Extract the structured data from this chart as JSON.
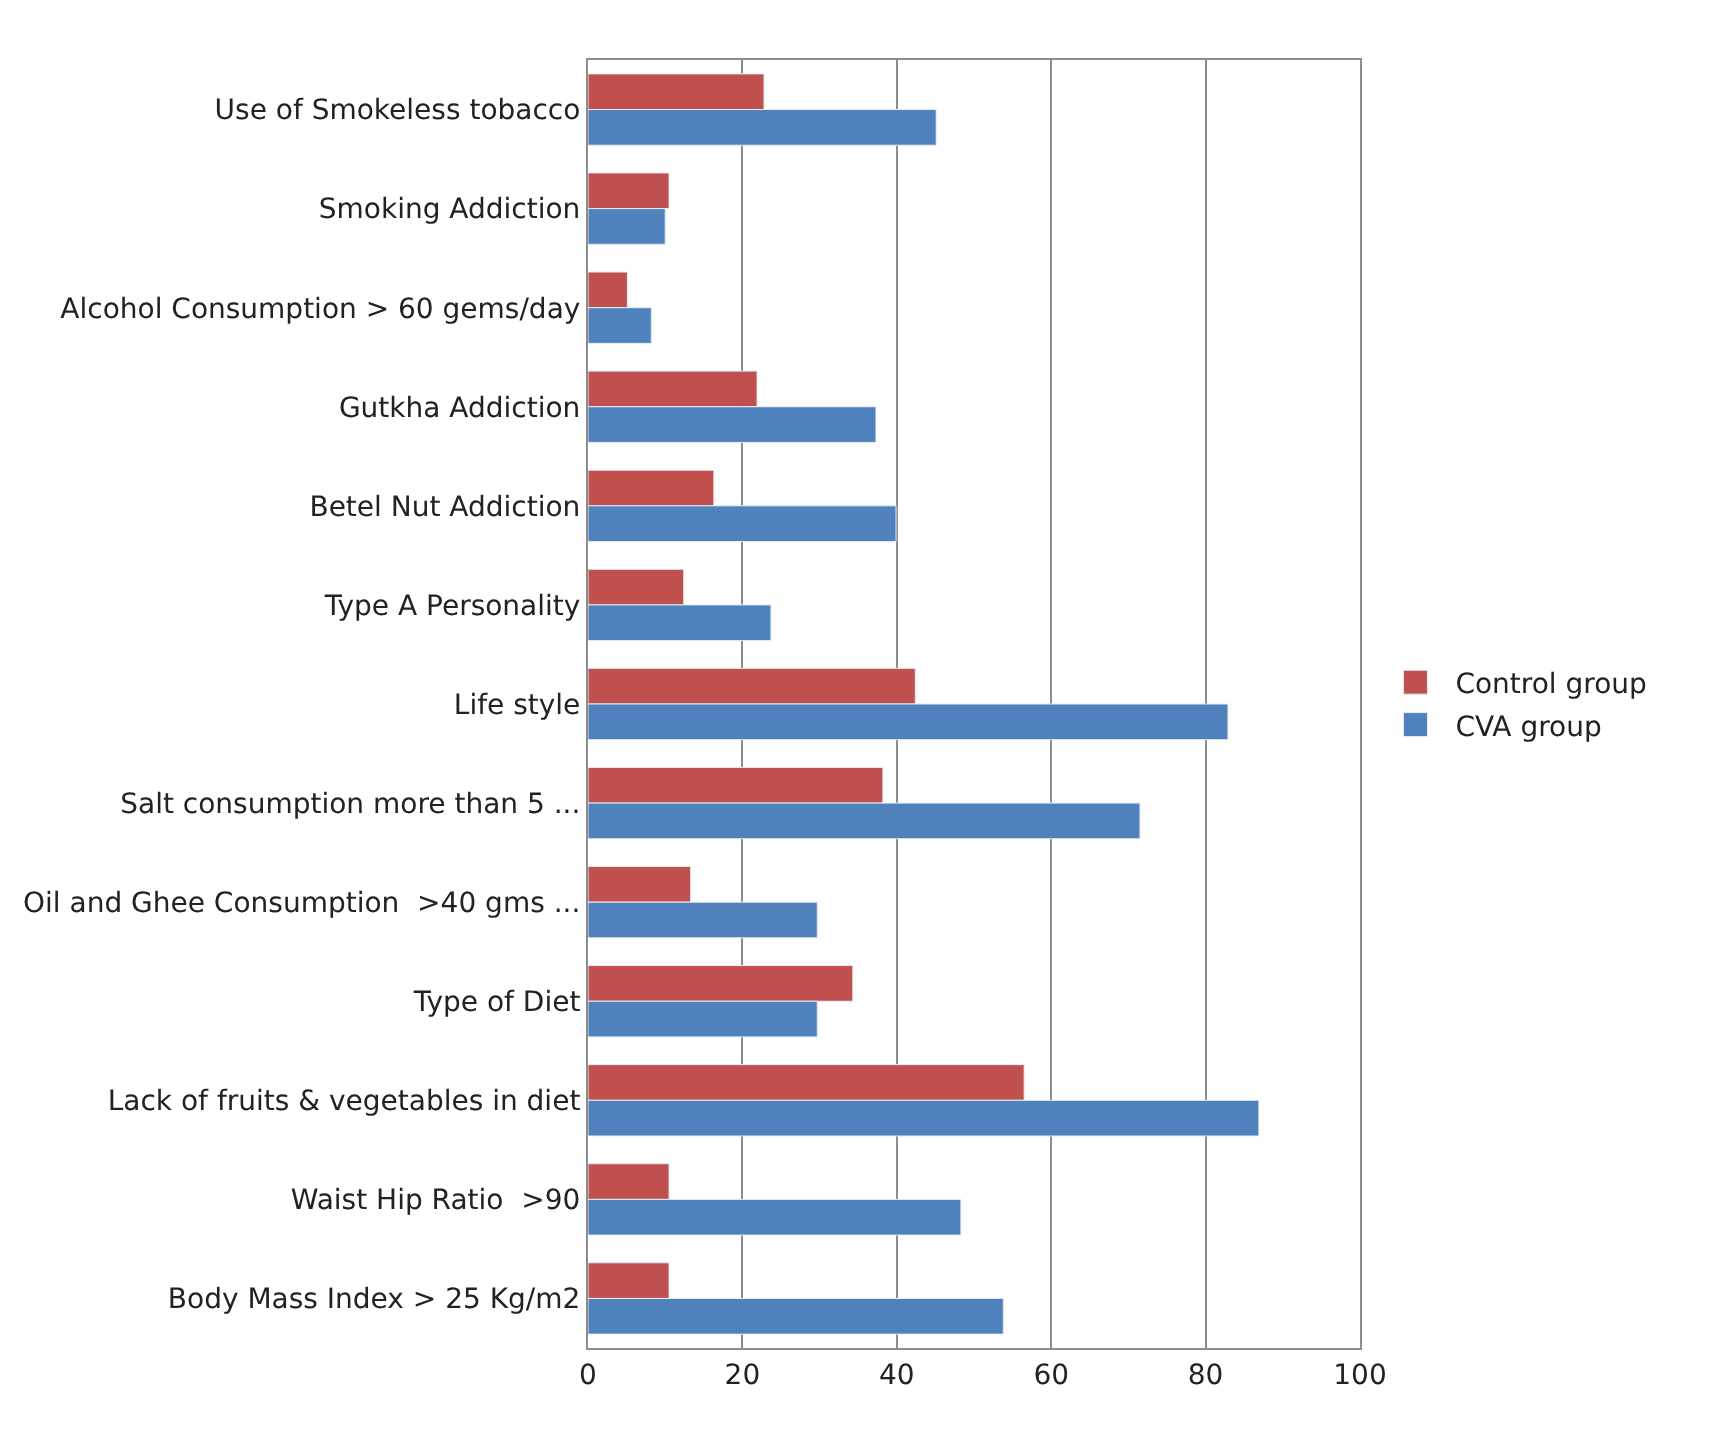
{
  "chart_data": {
    "type": "bar",
    "orientation": "horizontal",
    "categories": [
      "Use of Smokeless tobacco",
      "Smoking Addiction",
      "Alcohol Consumption > 60 gems/day",
      "Gutkha Addiction",
      "Betel Nut Addiction",
      "Type A Personality",
      "Life style",
      "Salt consumption more than 5 ...",
      "Oil and Ghee Consumption  >40 gms ...",
      "Type of Diet",
      "Lack of fruits & vegetables in diet",
      "Waist Hip Ratio  >90",
      "Body Mass Index > 25 Kg/m2"
    ],
    "series": [
      {
        "name": "Control group",
        "color": "#c0504d",
        "values": [
          22.8,
          10.5,
          5.1,
          21.9,
          16.3,
          12.4,
          42.4,
          38.2,
          13.3,
          34.3,
          56.5,
          10.5,
          10.5
        ]
      },
      {
        "name": "CVA group",
        "color": "#4f81bd",
        "values": [
          45.1,
          10.0,
          8.2,
          37.3,
          39.9,
          23.7,
          82.9,
          71.5,
          29.7,
          29.7,
          86.9,
          48.3,
          53.8
        ]
      }
    ],
    "xlim": [
      0,
      100
    ],
    "xticks": [
      0,
      20,
      40,
      60,
      80,
      100
    ],
    "grid": "x",
    "legend": "right"
  }
}
